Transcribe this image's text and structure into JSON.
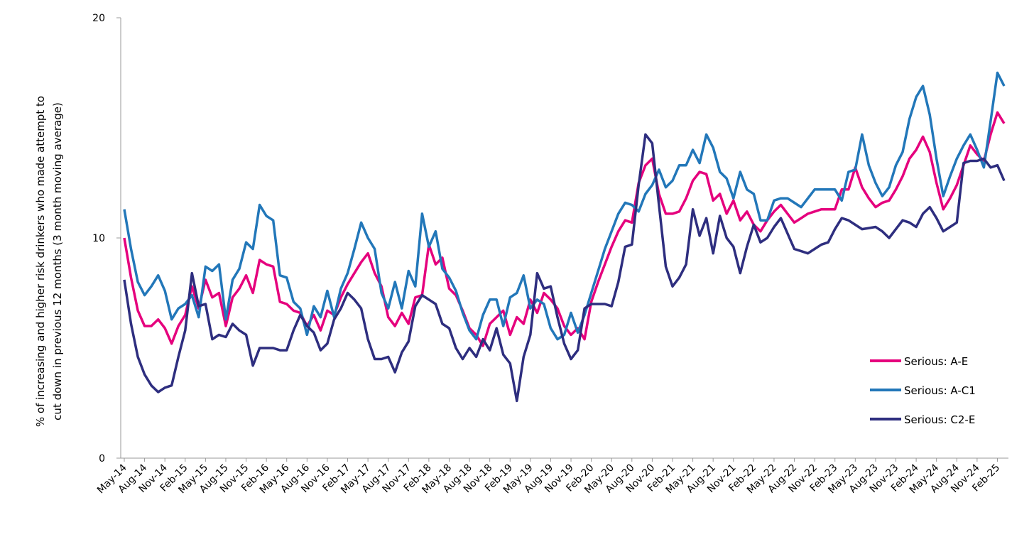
{
  "chart_data": {
    "type": "line",
    "ylabel": [
      "% of increasing and higher risk drinkers who made attempt to",
      "cut down in previous 12 months (3 month moving average)"
    ],
    "categories": [
      "May-14",
      null,
      null,
      "Aug-14",
      null,
      null,
      "Nov-14",
      null,
      null,
      "Feb-15",
      null,
      null,
      "May-15",
      null,
      null,
      "Aug-15",
      null,
      null,
      "Nov-15",
      null,
      null,
      "Feb-16",
      null,
      null,
      "May-16",
      null,
      null,
      "Aug-16",
      null,
      null,
      "Nov-16",
      null,
      null,
      "Feb-17",
      null,
      null,
      "May-17",
      null,
      null,
      "Aug-17",
      null,
      null,
      "Nov-17",
      null,
      null,
      "Feb-18",
      null,
      null,
      "May-18",
      null,
      null,
      "Aug-18",
      null,
      null,
      "Nov-18",
      null,
      null,
      "Feb-19",
      null,
      null,
      "May-19",
      null,
      null,
      "Aug-19",
      null,
      null,
      "Nov-19",
      null,
      null,
      "Feb-20",
      null,
      null,
      "May-20",
      null,
      null,
      "Aug-20",
      null,
      null,
      "Nov-20",
      null,
      null,
      "Feb-21",
      null,
      null,
      "May-21",
      null,
      null,
      "Aug-21",
      null,
      null,
      "Nov-21",
      null,
      null,
      "Feb-22",
      null,
      null,
      "May-22",
      null,
      null,
      "Aug-22",
      null,
      null,
      "Nov-22",
      null,
      null,
      "Feb-23",
      null,
      null,
      "May-23",
      null,
      null,
      "Aug-23",
      null,
      null,
      "Nov-23",
      null,
      null,
      "Feb-24",
      null,
      null,
      "May-24",
      null,
      null,
      "Aug-24",
      null,
      null,
      "Nov-24",
      null,
      null,
      "Feb-25",
      null
    ],
    "series": [
      {
        "name": "Serious: A-E",
        "color": "#e5007d",
        "values": [
          10.0,
          8.2,
          6.7,
          6.0,
          6.0,
          6.3,
          5.9,
          5.2,
          6.0,
          6.5,
          7.8,
          6.8,
          8.1,
          7.3,
          7.5,
          6.0,
          7.3,
          7.7,
          8.3,
          7.5,
          9.0,
          8.8,
          8.7,
          7.1,
          7.0,
          6.7,
          6.6,
          6.0,
          6.5,
          5.8,
          6.7,
          6.5,
          7.3,
          7.9,
          8.4,
          8.9,
          9.3,
          8.4,
          7.8,
          6.4,
          6.0,
          6.6,
          6.1,
          7.3,
          7.4,
          9.7,
          8.8,
          9.1,
          7.7,
          7.4,
          6.7,
          5.9,
          5.6,
          5.1,
          6.1,
          6.4,
          6.7,
          5.6,
          6.4,
          6.1,
          7.2,
          6.6,
          7.5,
          7.2,
          6.8,
          6.0,
          5.6,
          5.9,
          5.4,
          7.1,
          8.0,
          8.8,
          9.6,
          10.3,
          10.8,
          10.7,
          12.5,
          13.3,
          13.6,
          12.0,
          11.1,
          11.1,
          11.2,
          11.8,
          12.6,
          13.0,
          12.9,
          11.7,
          12.0,
          11.1,
          11.7,
          10.8,
          11.2,
          10.6,
          10.3,
          10.8,
          11.2,
          11.5,
          11.1,
          10.7,
          10.9,
          11.1,
          11.2,
          11.3,
          11.3,
          11.3,
          12.2,
          12.2,
          13.2,
          12.3,
          11.8,
          11.4,
          11.6,
          11.7,
          12.2,
          12.8,
          13.6,
          14.0,
          14.6,
          13.9,
          12.5,
          11.3,
          11.8,
          12.4,
          13.3,
          14.2,
          13.8,
          13.5,
          14.7,
          15.7,
          15.2
        ]
      },
      {
        "name": "Serious: A-C1",
        "color": "#2277b9",
        "values": [
          11.3,
          9.5,
          8.0,
          7.4,
          7.8,
          8.3,
          7.6,
          6.3,
          6.8,
          7.0,
          7.4,
          6.4,
          8.7,
          8.5,
          8.8,
          6.3,
          8.1,
          8.6,
          9.8,
          9.5,
          11.5,
          11.0,
          10.8,
          8.3,
          8.2,
          7.1,
          6.8,
          5.6,
          6.9,
          6.4,
          7.6,
          6.4,
          7.7,
          8.4,
          9.5,
          10.7,
          10.0,
          9.5,
          7.5,
          6.8,
          8.0,
          6.8,
          8.5,
          7.8,
          11.1,
          9.6,
          10.3,
          8.6,
          8.2,
          7.6,
          6.6,
          5.8,
          5.4,
          6.5,
          7.2,
          7.2,
          6.0,
          7.3,
          7.5,
          8.3,
          6.8,
          7.2,
          7.0,
          5.9,
          5.4,
          5.6,
          6.6,
          5.7,
          6.5,
          7.5,
          8.5,
          9.5,
          10.3,
          11.1,
          11.6,
          11.5,
          11.2,
          12.0,
          12.4,
          13.1,
          12.3,
          12.6,
          13.3,
          13.3,
          14.0,
          13.4,
          14.7,
          14.1,
          13.0,
          12.7,
          11.8,
          13.0,
          12.2,
          12.0,
          10.8,
          10.8,
          11.7,
          11.8,
          11.8,
          11.6,
          11.4,
          11.8,
          12.2,
          12.2,
          12.2,
          12.2,
          11.7,
          13.0,
          13.1,
          14.7,
          13.3,
          12.5,
          11.9,
          12.3,
          13.3,
          13.9,
          15.4,
          16.4,
          16.9,
          15.6,
          13.6,
          11.9,
          12.8,
          13.6,
          14.2,
          14.7,
          14.0,
          13.2,
          15.3,
          17.5,
          16.9
        ]
      },
      {
        "name": "Serious: C2-E",
        "color": "#2e2e7f",
        "values": [
          8.1,
          6.1,
          4.6,
          3.8,
          3.3,
          3.0,
          3.2,
          3.3,
          4.6,
          5.8,
          8.4,
          6.9,
          7.0,
          5.4,
          5.6,
          5.5,
          6.1,
          5.8,
          5.6,
          4.2,
          5.0,
          5.0,
          5.0,
          4.9,
          4.9,
          5.8,
          6.5,
          6.0,
          5.7,
          4.9,
          5.2,
          6.3,
          6.8,
          7.5,
          7.2,
          6.8,
          5.4,
          4.5,
          4.5,
          4.6,
          3.9,
          4.8,
          5.3,
          6.9,
          7.4,
          7.2,
          7.0,
          6.1,
          5.9,
          5.0,
          4.5,
          5.0,
          4.6,
          5.4,
          4.9,
          5.9,
          4.7,
          4.3,
          2.6,
          4.6,
          5.6,
          8.4,
          7.7,
          7.8,
          6.4,
          5.2,
          4.5,
          4.9,
          6.8,
          7.0,
          7.0,
          7.0,
          6.9,
          8.0,
          9.6,
          9.7,
          12.4,
          14.7,
          14.3,
          11.5,
          8.7,
          7.8,
          8.2,
          8.8,
          11.3,
          10.1,
          10.9,
          9.3,
          11.0,
          10.0,
          9.6,
          8.4,
          9.6,
          10.6,
          9.8,
          10.0,
          10.5,
          10.9,
          10.2,
          9.5,
          9.4,
          9.3,
          9.5,
          9.7,
          9.8,
          10.4,
          10.9,
          10.8,
          10.6,
          10.4,
          10.45,
          10.5,
          10.3,
          10.0,
          10.4,
          10.8,
          10.7,
          10.5,
          11.1,
          11.4,
          10.9,
          10.3,
          10.5,
          10.7,
          13.4,
          13.5,
          13.5,
          13.6,
          13.2,
          13.3,
          12.6
        ]
      }
    ],
    "ylim": [
      0,
      20
    ],
    "yticks": [
      0,
      10,
      20
    ],
    "grid": false,
    "legend": "bottom-right"
  }
}
